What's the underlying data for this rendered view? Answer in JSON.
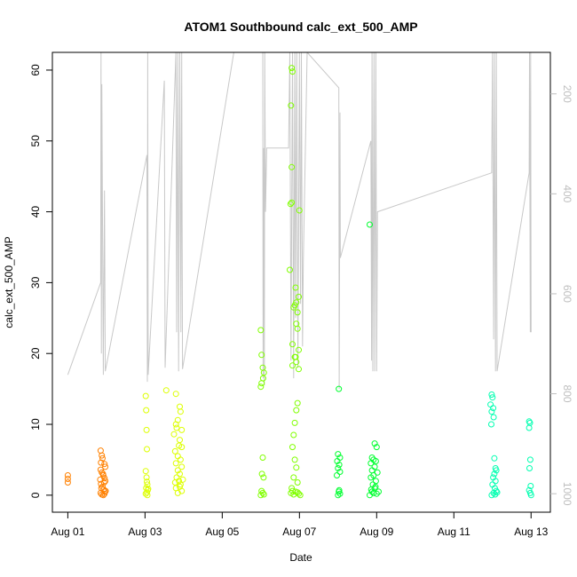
{
  "chart_data": {
    "type": "scatter",
    "title": "ATOM1 Southbound calc_ext_500_AMP",
    "xlabel": "Date",
    "ylabel": "calc_ext_500_AMP",
    "x_unit": "days (Aug 1 = 1)",
    "xlim": [
      0.6,
      13.5
    ],
    "ylim": [
      -2.4,
      62.5
    ],
    "x_ticks": [
      {
        "value": 1,
        "label": "Aug 01"
      },
      {
        "value": 3,
        "label": "Aug 03"
      },
      {
        "value": 5,
        "label": "Aug 05"
      },
      {
        "value": 7,
        "label": "Aug 07"
      },
      {
        "value": 9,
        "label": "Aug 09"
      },
      {
        "value": 11,
        "label": "Aug 11"
      },
      {
        "value": 13,
        "label": "Aug 13"
      }
    ],
    "y_ticks": [
      0,
      10,
      20,
      30,
      40,
      50,
      60
    ],
    "right_axis": {
      "color": "#bebebe",
      "lim": [
        1037,
        117
      ],
      "ticks": [
        200,
        400,
        600,
        800,
        1000
      ]
    },
    "grid": false,
    "legend": "none",
    "colors": {
      "grey_line": "#c8c8c8",
      "orange": "#ff8000",
      "yellow": "#ddff00",
      "green_light": "#80ff00",
      "green": "#00ff30",
      "teal": "#00ffb0"
    },
    "gray_trace": [
      [
        1.0,
        17.0
      ],
      [
        1.85,
        30.0
      ],
      [
        1.86,
        62.5
      ],
      [
        1.87,
        20.0
      ],
      [
        1.88,
        58.0
      ],
      [
        1.92,
        17.0
      ],
      [
        1.95,
        43.0
      ],
      [
        1.97,
        17.5
      ],
      [
        3.05,
        48.0
      ],
      [
        3.06,
        16.0
      ],
      [
        3.07,
        62.5
      ],
      [
        3.08,
        17.0
      ],
      [
        3.5,
        58.5
      ],
      [
        3.52,
        18.0
      ],
      [
        3.8,
        62.5
      ],
      [
        3.82,
        23.0
      ],
      [
        3.85,
        62.5
      ],
      [
        3.87,
        17.5
      ],
      [
        3.9,
        62.5
      ],
      [
        3.93,
        23.0
      ],
      [
        3.95,
        62.5
      ],
      [
        3.97,
        17.8
      ],
      [
        5.3,
        62.5
      ],
      [
        6.05,
        62.5
      ],
      [
        6.06,
        16.5
      ],
      [
        6.07,
        49.0
      ],
      [
        6.09,
        15.5
      ],
      [
        6.1,
        62.5
      ],
      [
        6.12,
        40.0
      ],
      [
        6.15,
        49.0
      ],
      [
        6.3,
        49.0
      ],
      [
        6.72,
        49.0
      ],
      [
        6.75,
        62.5
      ],
      [
        6.78,
        19.0
      ],
      [
        6.82,
        62.5
      ],
      [
        6.85,
        16.5
      ],
      [
        6.88,
        62.5
      ],
      [
        6.9,
        25.0
      ],
      [
        6.93,
        62.5
      ],
      [
        6.96,
        18.0
      ],
      [
        7.0,
        62.5
      ],
      [
        7.03,
        27.0
      ],
      [
        7.05,
        62.5
      ],
      [
        7.08,
        21.0
      ],
      [
        7.1,
        33.0
      ],
      [
        7.2,
        62.5
      ],
      [
        8.02,
        57.5
      ],
      [
        8.03,
        15.0
      ],
      [
        8.05,
        54.0
      ],
      [
        8.06,
        33.5
      ],
      [
        8.85,
        50.0
      ],
      [
        8.87,
        19.0
      ],
      [
        8.88,
        62.5
      ],
      [
        8.9,
        17.5
      ],
      [
        8.93,
        62.5
      ],
      [
        8.95,
        17.5
      ],
      [
        8.98,
        62.5
      ],
      [
        9.0,
        17.5
      ],
      [
        9.02,
        40.0
      ],
      [
        11.98,
        45.5
      ],
      [
        12.0,
        62.5
      ],
      [
        12.03,
        22.0
      ],
      [
        12.05,
        62.5
      ],
      [
        12.08,
        17.5
      ],
      [
        12.1,
        62.5
      ],
      [
        12.12,
        17.5
      ],
      [
        12.95,
        45.5
      ],
      [
        12.96,
        62.5
      ],
      [
        12.98,
        23.0
      ],
      [
        12.99,
        62.5
      ],
      [
        13.0,
        23.0
      ]
    ],
    "series": [
      {
        "color": "#ff8000",
        "points": [
          [
            1.0,
            2.8
          ],
          [
            1.0,
            2.3
          ],
          [
            1.0,
            1.8
          ],
          [
            1.85,
            6.3
          ],
          [
            1.88,
            5.6
          ],
          [
            1.9,
            5.2
          ],
          [
            1.86,
            4.6
          ],
          [
            1.95,
            4.4
          ],
          [
            1.97,
            4.0
          ],
          [
            1.85,
            3.6
          ],
          [
            1.88,
            3.2
          ],
          [
            1.92,
            2.8
          ],
          [
            1.95,
            2.4
          ],
          [
            1.97,
            2.0
          ],
          [
            1.86,
            1.6
          ],
          [
            1.9,
            1.2
          ],
          [
            1.93,
            0.8
          ],
          [
            1.96,
            0.5
          ],
          [
            1.85,
            0.3
          ],
          [
            1.88,
            0.1
          ],
          [
            1.92,
            0.0
          ],
          [
            1.95,
            0.2
          ],
          [
            1.87,
            1.0
          ],
          [
            1.91,
            3.0
          ],
          [
            1.94,
            1.8
          ],
          [
            1.84,
            2.2
          ],
          [
            1.98,
            0.6
          ]
        ]
      },
      {
        "color": "#ddff00",
        "points": [
          [
            3.02,
            14.0
          ],
          [
            3.03,
            12.0
          ],
          [
            3.04,
            9.2
          ],
          [
            3.05,
            6.5
          ],
          [
            3.02,
            3.4
          ],
          [
            3.04,
            2.5
          ],
          [
            3.05,
            1.9
          ],
          [
            3.06,
            1.5
          ],
          [
            3.03,
            1.0
          ],
          [
            3.07,
            0.7
          ],
          [
            3.05,
            0.4
          ],
          [
            3.02,
            0.2
          ],
          [
            3.06,
            0.0
          ],
          [
            3.08,
            0.9
          ],
          [
            3.55,
            14.8
          ],
          [
            3.8,
            14.3
          ],
          [
            3.9,
            12.5
          ],
          [
            3.92,
            11.8
          ],
          [
            3.85,
            10.6
          ],
          [
            3.8,
            10.0
          ],
          [
            3.82,
            9.5
          ],
          [
            3.95,
            9.2
          ],
          [
            3.75,
            8.6
          ],
          [
            3.9,
            7.8
          ],
          [
            3.88,
            7.0
          ],
          [
            3.95,
            6.8
          ],
          [
            3.78,
            6.2
          ],
          [
            3.85,
            5.5
          ],
          [
            3.92,
            5.0
          ],
          [
            3.8,
            4.5
          ],
          [
            3.95,
            4.0
          ],
          [
            3.85,
            3.5
          ],
          [
            3.9,
            3.0
          ],
          [
            3.82,
            2.5
          ],
          [
            3.88,
            2.0
          ],
          [
            3.92,
            1.5
          ],
          [
            3.8,
            1.0
          ],
          [
            3.95,
            0.6
          ],
          [
            3.85,
            0.3
          ],
          [
            3.9,
            1.2
          ],
          [
            3.78,
            1.8
          ],
          [
            3.98,
            2.2
          ]
        ]
      },
      {
        "color": "#80ff00",
        "points": [
          [
            6.0,
            23.3
          ],
          [
            6.02,
            19.8
          ],
          [
            6.05,
            18.0
          ],
          [
            6.08,
            17.3
          ],
          [
            6.06,
            16.5
          ],
          [
            6.02,
            15.8
          ],
          [
            6.0,
            15.3
          ],
          [
            6.05,
            5.3
          ],
          [
            6.03,
            3.0
          ],
          [
            6.07,
            2.5
          ],
          [
            6.02,
            0.6
          ],
          [
            6.05,
            0.3
          ],
          [
            6.08,
            0.1
          ],
          [
            6.0,
            0.0
          ],
          [
            6.8,
            60.3
          ],
          [
            6.82,
            59.8
          ],
          [
            6.78,
            55.0
          ],
          [
            6.8,
            46.3
          ],
          [
            6.77,
            41.1
          ],
          [
            6.8,
            41.3
          ],
          [
            6.75,
            31.8
          ],
          [
            6.85,
            26.5
          ],
          [
            6.88,
            26.8
          ],
          [
            6.92,
            27.2
          ],
          [
            6.95,
            25.8
          ],
          [
            7.0,
            40.2
          ],
          [
            6.98,
            28.0
          ],
          [
            6.9,
            29.3
          ],
          [
            6.92,
            24.2
          ],
          [
            6.95,
            23.5
          ],
          [
            6.82,
            21.3
          ],
          [
            6.98,
            20.5
          ],
          [
            6.88,
            19.5
          ],
          [
            6.9,
            19.5
          ],
          [
            6.92,
            18.8
          ],
          [
            6.82,
            18.3
          ],
          [
            6.98,
            17.8
          ],
          [
            6.95,
            13.0
          ],
          [
            6.92,
            12.0
          ],
          [
            6.88,
            10.2
          ],
          [
            6.85,
            8.5
          ],
          [
            6.82,
            6.8
          ],
          [
            6.88,
            5.0
          ],
          [
            6.92,
            3.9
          ],
          [
            6.85,
            2.5
          ],
          [
            6.95,
            1.8
          ],
          [
            6.8,
            1.0
          ],
          [
            6.9,
            0.5
          ],
          [
            6.85,
            0.1
          ],
          [
            6.98,
            0.2
          ],
          [
            7.02,
            0.0
          ],
          [
            6.78,
            0.3
          ],
          [
            6.82,
            0.6
          ],
          [
            6.95,
            0.4
          ]
        ]
      },
      {
        "color": "#00ff30",
        "points": [
          [
            8.02,
            15.0
          ],
          [
            8.0,
            5.8
          ],
          [
            8.05,
            5.3
          ],
          [
            7.98,
            4.8
          ],
          [
            8.03,
            4.3
          ],
          [
            8.0,
            3.8
          ],
          [
            8.05,
            3.3
          ],
          [
            7.97,
            2.8
          ],
          [
            8.02,
            0.5
          ],
          [
            8.05,
            0.2
          ],
          [
            8.0,
            0.0
          ],
          [
            8.03,
            0.7
          ],
          [
            8.82,
            38.2
          ],
          [
            8.95,
            7.3
          ],
          [
            9.0,
            6.8
          ],
          [
            8.88,
            5.3
          ],
          [
            8.92,
            5.0
          ],
          [
            8.98,
            4.8
          ],
          [
            8.85,
            4.5
          ],
          [
            8.95,
            4.0
          ],
          [
            8.88,
            3.5
          ],
          [
            9.02,
            3.2
          ],
          [
            8.92,
            2.8
          ],
          [
            8.85,
            2.5
          ],
          [
            8.98,
            2.0
          ],
          [
            8.9,
            1.5
          ],
          [
            8.95,
            1.0
          ],
          [
            8.88,
            0.5
          ],
          [
            9.0,
            0.2
          ],
          [
            8.82,
            0.0
          ],
          [
            8.92,
            0.3
          ],
          [
            9.05,
            0.5
          ],
          [
            8.86,
            0.8
          ],
          [
            8.97,
            1.2
          ]
        ]
      },
      {
        "color": "#00ffb0",
        "points": [
          [
            11.98,
            14.2
          ],
          [
            12.0,
            13.8
          ],
          [
            11.95,
            12.8
          ],
          [
            12.02,
            12.3
          ],
          [
            11.98,
            11.8
          ],
          [
            12.03,
            11.0
          ],
          [
            11.97,
            10.0
          ],
          [
            12.05,
            5.2
          ],
          [
            12.08,
            3.8
          ],
          [
            12.1,
            3.5
          ],
          [
            12.05,
            3.0
          ],
          [
            12.02,
            2.5
          ],
          [
            12.08,
            2.0
          ],
          [
            12.0,
            1.5
          ],
          [
            12.06,
            1.0
          ],
          [
            12.1,
            0.6
          ],
          [
            12.03,
            0.3
          ],
          [
            12.07,
            0.1
          ],
          [
            11.98,
            0.0
          ],
          [
            12.12,
            0.4
          ],
          [
            12.95,
            10.4
          ],
          [
            12.97,
            10.2
          ],
          [
            12.95,
            9.5
          ],
          [
            12.98,
            5.0
          ],
          [
            12.96,
            3.8
          ],
          [
            12.99,
            1.3
          ],
          [
            12.95,
            0.7
          ],
          [
            12.98,
            0.3
          ],
          [
            13.0,
            0.0
          ]
        ]
      }
    ]
  }
}
